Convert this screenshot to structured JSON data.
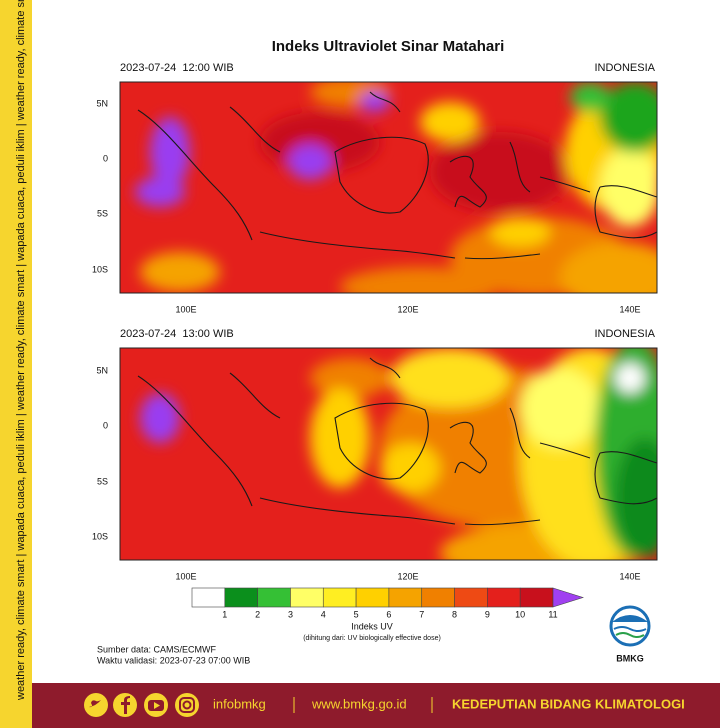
{
  "side_banner": "weather ready, climate smart | wapada cuaca, peduli iklim | weather ready, climate smart | wapada cuaca, peduli iklim | weather ready, climate smart | wapada cuaca, peduli iklim",
  "title": "Indeks Ultraviolet Sinar Matahari",
  "panels": [
    {
      "time": "2023-07-24  12:00 WIB",
      "region": "INDONESIA"
    },
    {
      "time": "2023-07-24  13:00 WIB",
      "region": "INDONESIA"
    }
  ],
  "lat_labels": [
    "5N",
    "0",
    "5S",
    "10S"
  ],
  "lon_labels": [
    "100E",
    "120E",
    "140E"
  ],
  "colorbar": {
    "title": "Indeks UV",
    "note": "(dihitung dari: UV biologically effective dose)",
    "levels": [
      1,
      2,
      3,
      4,
      5,
      6,
      7,
      8,
      9,
      10,
      11
    ],
    "colors": [
      "#ffffff",
      "#0b8f1c",
      "#35c035",
      "#ffff66",
      "#ffee22",
      "#ffd000",
      "#f5a300",
      "#f08000",
      "#ee4a14",
      "#e4201c",
      "#c8101c",
      "#a040f0"
    ]
  },
  "source": "Sumber data: CAMS/ECMWF",
  "validity": "Waktu validasi: 2023-07-23 07:00 WIB",
  "logo": "BMKG",
  "footer": {
    "handle": "infobmkg",
    "website": "www.bmkg.go.id",
    "department": "KEDEPUTIAN BIDANG KLIMATOLOGI"
  }
}
